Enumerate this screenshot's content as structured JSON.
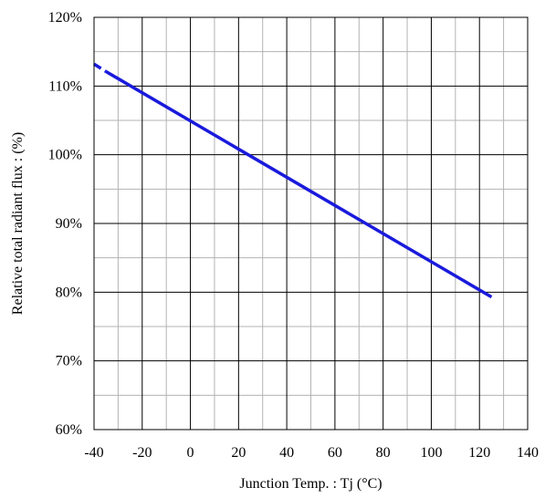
{
  "chart_data": {
    "type": "line",
    "xlabel": "Junction Temp. : Tj (°C)",
    "ylabel": "Relative total radiant flux : (%)",
    "xlim": [
      -40,
      140
    ],
    "ylim": [
      60,
      120
    ],
    "xticks": [
      -40,
      -20,
      0,
      20,
      40,
      60,
      80,
      100,
      120,
      140
    ],
    "yticks": [
      60,
      70,
      80,
      90,
      100,
      110,
      120
    ],
    "xtick_labels": [
      "-40",
      "-20",
      "0",
      "20",
      "40",
      "60",
      "80",
      "100",
      "120",
      "140"
    ],
    "ytick_labels": [
      "60%",
      "70%",
      "80%",
      "90%",
      "100%",
      "110%",
      "120%"
    ],
    "grid": true,
    "minor_grid_x_step": 10,
    "minor_grid_y_step": 5,
    "series": [
      {
        "style": "dashed",
        "color": "#1a1adc",
        "x": [
          -40,
          -35
        ],
        "y": [
          113.2,
          112.1
        ]
      },
      {
        "style": "solid",
        "color": "#1a1adc",
        "x": [
          -35,
          125
        ],
        "y": [
          112.1,
          79.3
        ]
      }
    ],
    "colors": {
      "line": "#1a1adc",
      "major_grid": "#000000",
      "minor_grid": "#b3b3b3",
      "background": "#ffffff"
    }
  }
}
